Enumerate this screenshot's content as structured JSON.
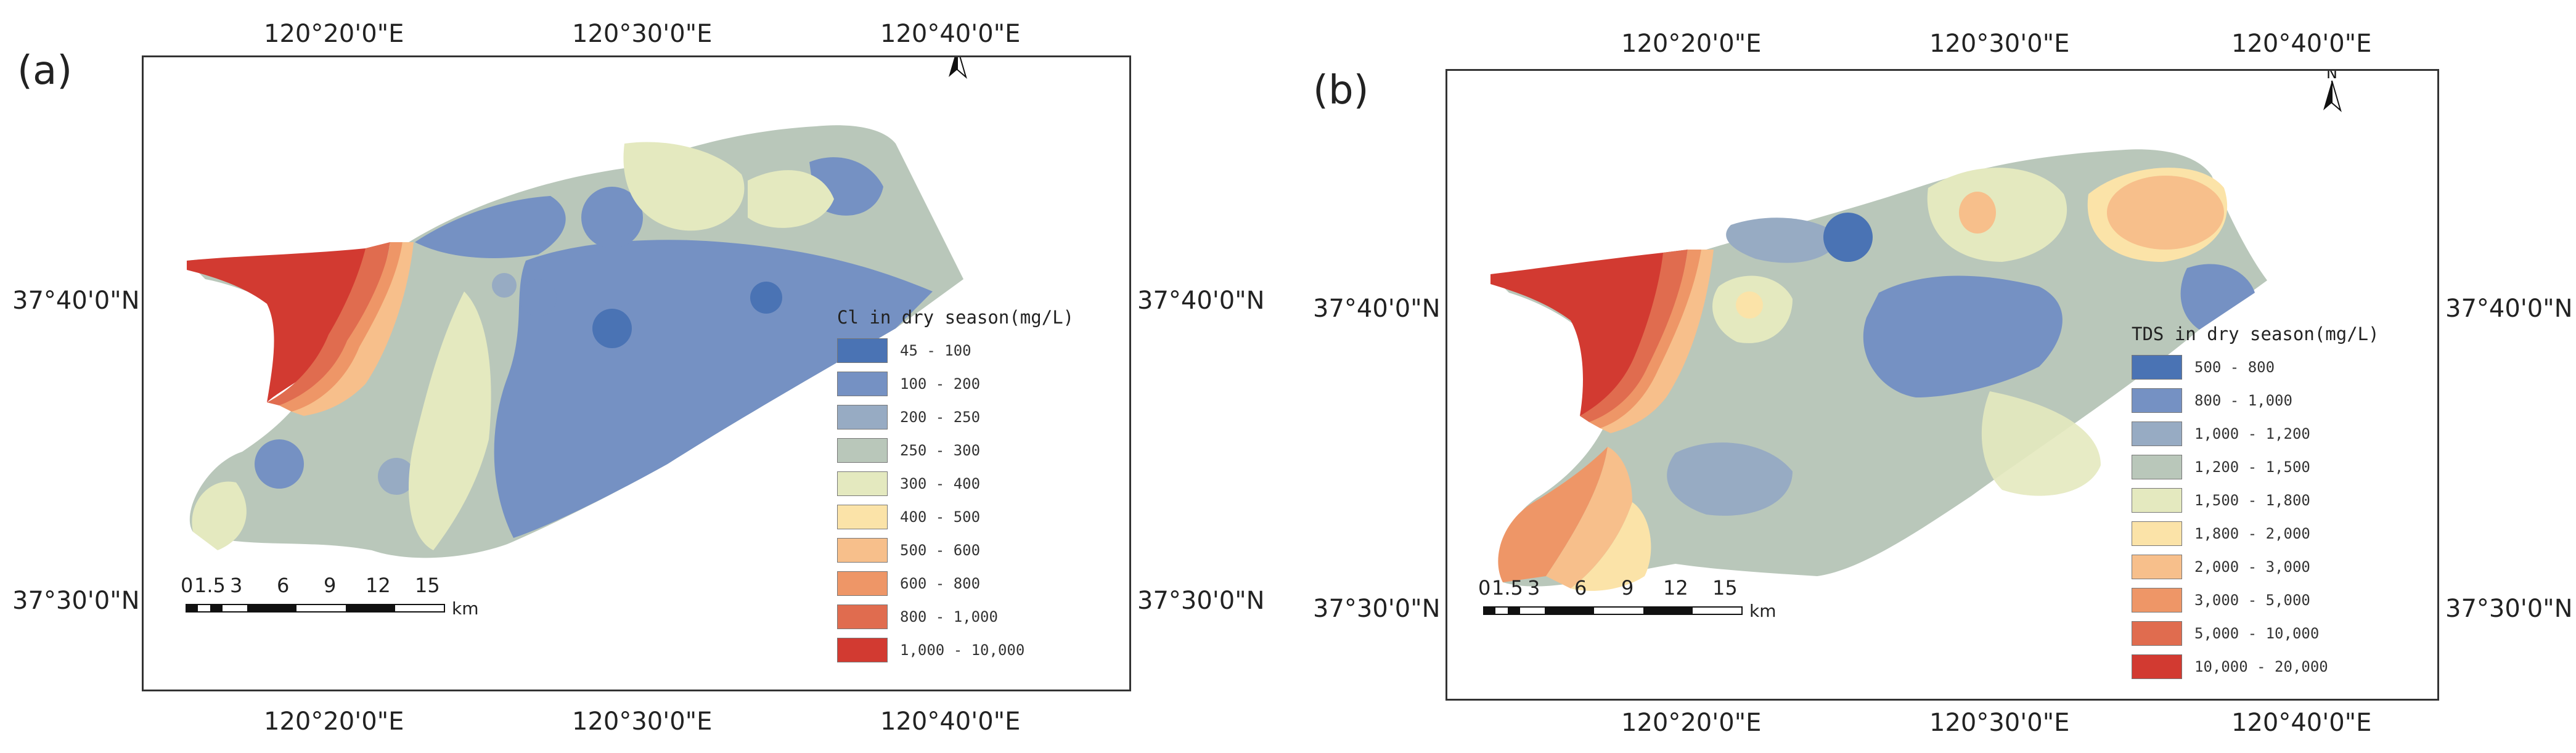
{
  "panels": [
    {
      "label": "(a)",
      "top_ticks": [
        "120°20'0\"E",
        "120°30'0\"E",
        "120°40'0\"E"
      ],
      "bottom_ticks": [
        "120°20'0\"E",
        "120°30'0\"E",
        "120°40'0\"E"
      ],
      "left_ticks": [
        "37°40'0\"N",
        "37°30'0\"N"
      ],
      "right_ticks": [
        "37°40'0\"N",
        "37°30'0\"N"
      ],
      "north_label": "N",
      "scale_labels": [
        "0",
        "1.5",
        "3",
        "6",
        "9",
        "12",
        "15"
      ],
      "scale_unit": "km",
      "legend_title": "Cl in dry season(mg/L)",
      "legend": [
        {
          "label": "45 - 100",
          "color": "#4a73b4"
        },
        {
          "label": "100 - 200",
          "color": "#7591c3"
        },
        {
          "label": "200 - 250",
          "color": "#97abc3"
        },
        {
          "label": "250 - 300",
          "color": "#b9c7ba"
        },
        {
          "label": "300 - 400",
          "color": "#e4e9bf"
        },
        {
          "label": "400 - 500",
          "color": "#fbe3a8"
        },
        {
          "label": "500 - 600",
          "color": "#f7bf8b"
        },
        {
          "label": "600 - 800",
          "color": "#ee9667"
        },
        {
          "label": "800 - 1,000",
          "color": "#e06c4f"
        },
        {
          "label": "1,000 - 10,000",
          "color": "#d23a31"
        }
      ]
    },
    {
      "label": "(b)",
      "top_ticks": [
        "120°20'0\"E",
        "120°30'0\"E",
        "120°40'0\"E"
      ],
      "bottom_ticks": [
        "120°20'0\"E",
        "120°30'0\"E",
        "120°40'0\"E"
      ],
      "left_ticks": [
        "37°40'0\"N",
        "37°30'0\"N"
      ],
      "right_ticks": [
        "37°40'0\"N",
        "37°30'0\"N"
      ],
      "north_label": "N",
      "scale_labels": [
        "0",
        "1.5",
        "3",
        "6",
        "9",
        "12",
        "15"
      ],
      "scale_unit": "km",
      "legend_title": "TDS in dry season(mg/L)",
      "legend": [
        {
          "label": "500 - 800",
          "color": "#4a73b4"
        },
        {
          "label": "800 - 1,000",
          "color": "#7591c3"
        },
        {
          "label": "1,000 - 1,200",
          "color": "#97abc3"
        },
        {
          "label": "1,200 - 1,500",
          "color": "#b9c7ba"
        },
        {
          "label": "1,500 - 1,800",
          "color": "#e4e9bf"
        },
        {
          "label": "1,800 - 2,000",
          "color": "#fbe3a8"
        },
        {
          "label": "2,000 - 3,000",
          "color": "#f7bf8b"
        },
        {
          "label": "3,000 - 5,000",
          "color": "#ee9667"
        },
        {
          "label": "5,000 - 10,000",
          "color": "#e06c4f"
        },
        {
          "label": "10,000 - 20,000",
          "color": "#d23a31"
        }
      ]
    }
  ]
}
